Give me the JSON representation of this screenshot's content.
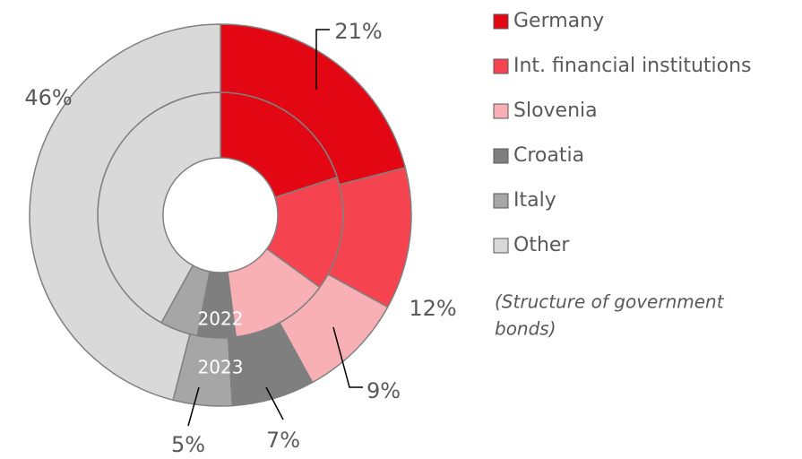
{
  "chart_data": {
    "type": "donut",
    "categories": [
      "Germany",
      "Int. financial institutions",
      "Slovenia",
      "Croatia",
      "Italy",
      "Other"
    ],
    "colors": [
      "#e30613",
      "#f5434f",
      "#f8b0b5",
      "#7f7f7f",
      "#a6a6a6",
      "#d9d9d9"
    ],
    "series": [
      {
        "name": "2022",
        "values": [
          20,
          15,
          13,
          5,
          5,
          42
        ]
      },
      {
        "name": "2023",
        "values": [
          21,
          12,
          9,
          7,
          5,
          46
        ],
        "value_labels": [
          "21%",
          "12%",
          "9%",
          "7%",
          "5%",
          "46%"
        ]
      }
    ],
    "note": [
      "(Structure of government",
      "bonds)"
    ],
    "legend": "right"
  }
}
